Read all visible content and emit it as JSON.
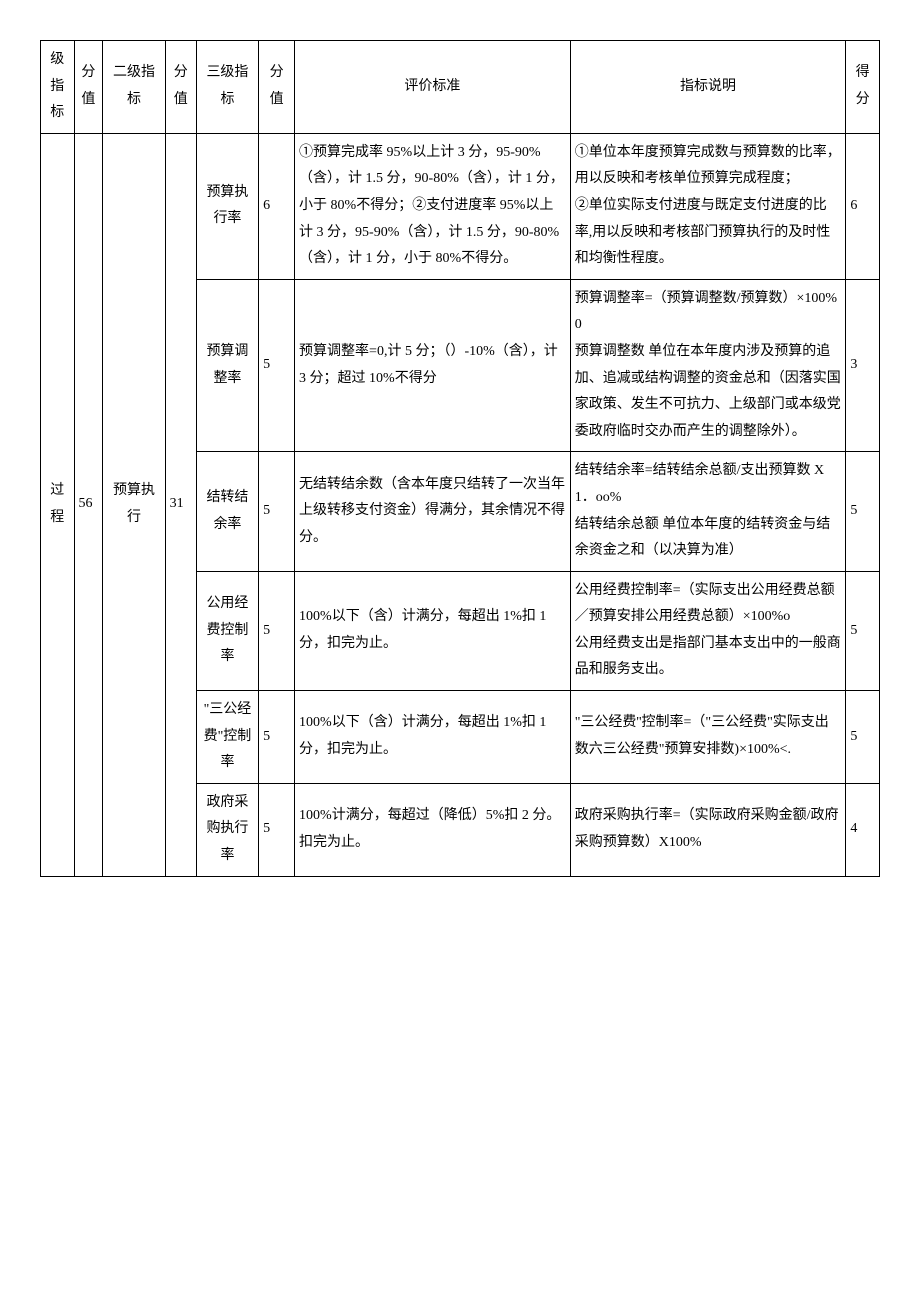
{
  "header": {
    "col1": "级指标",
    "col2": "分值",
    "col3": "二级指标",
    "col4": "分值",
    "col5": "三级指标",
    "col6": "分值",
    "col7": "评价标准",
    "col8": "指标说明",
    "col9": "得分"
  },
  "level1": {
    "name": "过程",
    "score": "56"
  },
  "level2": {
    "name": "预算执行",
    "score": "31"
  },
  "rows": [
    {
      "name": "预算执行率",
      "score3": "6",
      "standard": "①预算完成率 95%以上计 3 分，95-90%（含），计 1.5 分，90-80%（含），计 1 分，小于 80%不得分；②支付进度率 95%以上计 3 分，95-90%（含），计 1.5 分，90-80%（含），计 1 分，小于 80%不得分。",
      "desc": "①单位本年度预算完成数与预算数的比率，用以反映和考核单位预算完成程度；\n②单位实际支付进度与既定支付进度的比率,用以反映和考核部门预算执行的及时性和均衡性程度。",
      "final": "6"
    },
    {
      "name": "预算调整率",
      "score3": "5",
      "standard": "预算调整率=0,计 5 分；（）-10%（含），计 3 分；超过 10%不得分",
      "desc": "预算调整率=（预算调整数/预算数）×100%0\n预算调整数  单位在本年度内涉及预算的追加、追减或结构调整的资金总和（因落实国家政策、发生不可抗力、上级部门或本级党委政府临时交办而产生的调整除外）。",
      "final": "3"
    },
    {
      "name": "结转结余率",
      "score3": "5",
      "standard": "无结转结余数（含本年度只结转了一次当年上级转移支付资金）得满分，其余情况不得分。",
      "desc": "结转结余率=结转结余总额/支出预算数 X1．oo%\n结转结余总额  单位本年度的结转资金与结余资金之和（以决算为准）",
      "final": "5"
    },
    {
      "name": "公用经费控制率",
      "score3": "5",
      "standard": "100%以下（含）计满分，每超出 1%扣 1 分，扣完为止。",
      "desc": "公用经费控制率=（实际支出公用经费总额／预算安排公用经费总额）×100%o\n公用经费支出是指部门基本支出中的一般商品和服务支出。",
      "final": "5"
    },
    {
      "name": "\"三公经费\"控制率",
      "score3": "5",
      "standard": "100%以下（含）计满分，每超出 1%扣 1 分，扣完为止。",
      "desc": "\"三公经费''控制率=（\"三公经费\"实际支出数六三公经费\"预算安排数)×100%<.",
      "final": "5"
    },
    {
      "name": "政府采购执行率",
      "score3": "5",
      "standard": "100%计满分，每超过（降低）5%扣 2 分。扣完为止。",
      "desc": "政府采购执行率=（实际政府采购金额/政府采购预算数）X100%",
      "final": "4"
    }
  ]
}
